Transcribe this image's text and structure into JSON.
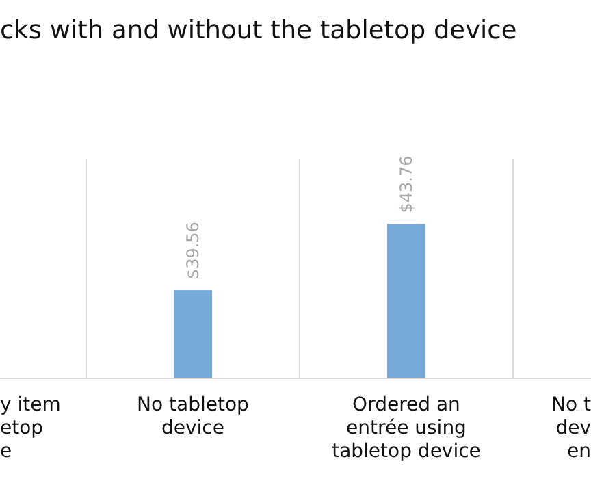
{
  "chart_data": {
    "type": "bar",
    "title": "cks with and without the tabletop device",
    "categories": [
      "y item\netop\ne",
      "No tabletop\ndevice",
      "Ordered an\nentrée using\ntabletop device",
      "No t\ndev\nen"
    ],
    "values": [
      null,
      39.56,
      43.76,
      null
    ],
    "value_labels": [
      null,
      "$39.56",
      "$43.76",
      null
    ],
    "color": "#77aad9",
    "ylim": [
      34,
      48
    ],
    "tick_labels": "x",
    "grid": "x"
  }
}
